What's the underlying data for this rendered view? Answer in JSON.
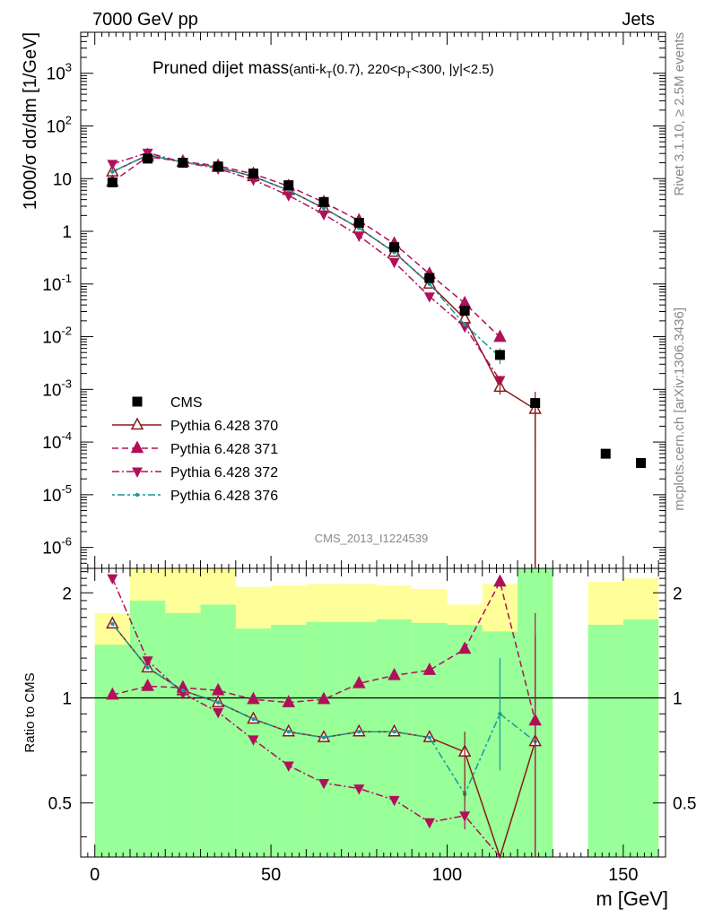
{
  "header": {
    "left": "7000 GeV pp",
    "right": "Jets"
  },
  "side_labels": {
    "rivet": "Rivet 3.1.10, ≥ 2.5M events",
    "mcplots": "mcplots.cern.ch [arXiv:1306.3436]"
  },
  "analysis_id": "CMS_2013_I1224539",
  "main_title": {
    "main": "Pruned dijet mass",
    "sub": "(anti-k",
    "sub_T": "T",
    "sub2": "(0.7), 220<p",
    "sub_T2": "T",
    "sub3": "<300, |y|<2.5)"
  },
  "axis_text": {
    "y_top": "1000/σ dσ/dm [1/GeV]",
    "y_ratio": "Ratio to CMS",
    "x": "m [GeV]"
  },
  "colors": {
    "data": "#000000",
    "p370": "#8b1a1a",
    "p371": "#b0105a",
    "p372": "#b0105a",
    "p376": "#1a9a9a",
    "band_inner": "#99ff99",
    "band_outer": "#ffff99"
  },
  "chart_data": {
    "type": "line",
    "x_label": "m [GeV]",
    "y_label": "1000/σ dσ/dm [1/GeV]",
    "ratio_label": "Ratio to CMS",
    "xlim": [
      -4,
      162
    ],
    "ylim_log": [
      4e-07,
      6000.0
    ],
    "ratio_ylim": [
      0.35,
      2.35
    ],
    "x_ticks": [
      0,
      50,
      100,
      150
    ],
    "y_ticks": [
      "10^{-6}",
      "10^{-5}",
      "10^{-4}",
      "10^{-3}",
      "10^{-2}",
      "10^{-1}",
      "1",
      "10",
      "10^{2}",
      "10^{3}"
    ],
    "ratio_ticks": [
      0.5,
      1,
      2
    ],
    "legend_position": "left",
    "bin_edges": [
      0,
      10,
      20,
      30,
      40,
      50,
      60,
      70,
      80,
      90,
      100,
      110,
      120,
      130,
      140,
      150,
      160
    ],
    "x_centers": [
      5,
      15,
      25,
      35,
      45,
      55,
      65,
      75,
      85,
      95,
      105,
      115,
      125,
      135,
      145,
      155
    ],
    "cms": [
      8.5,
      24,
      20,
      17,
      12.5,
      7.5,
      3.6,
      1.45,
      0.5,
      0.13,
      0.031,
      0.0045,
      0.00055,
      null,
      6e-05,
      4e-05
    ],
    "series": [
      {
        "name": "Pythia 6.428 370",
        "key": "p370",
        "marker": "triangle-up-open",
        "dash": "",
        "values": [
          13.5,
          28,
          20.5,
          16.5,
          11,
          6,
          2.75,
          1.15,
          0.4,
          0.1,
          0.022,
          0.0011,
          0.00042
        ]
      },
      {
        "name": "Pythia 6.428 371",
        "key": "p371",
        "marker": "triangle-up",
        "dash": "7,4",
        "values": [
          8.7,
          26,
          21,
          17.5,
          12.3,
          7.2,
          3.55,
          1.6,
          0.58,
          0.155,
          0.043,
          0.0098,
          null
        ]
      },
      {
        "name": "Pythia 6.428 372",
        "key": "p372",
        "marker": "triangle-down",
        "dash": "8,3,2,3",
        "values": [
          19,
          31,
          20.5,
          15.5,
          9.5,
          4.8,
          2.1,
          0.82,
          0.26,
          0.058,
          0.0155,
          0.0015,
          null
        ]
      },
      {
        "name": "Pythia 6.428 376",
        "key": "p376",
        "marker": "dot",
        "dash": "3,3,8,3",
        "values": [
          13.5,
          28,
          20.5,
          16.5,
          11,
          6,
          2.75,
          1.15,
          0.4,
          0.1,
          0.017,
          0.0041,
          null
        ]
      }
    ],
    "ratios": {
      "p370": [
        1.63,
        1.22,
        1.05,
        0.97,
        0.87,
        0.8,
        0.77,
        0.8,
        0.8,
        0.77,
        0.7,
        0.24,
        0.75
      ],
      "p371": [
        1.02,
        1.08,
        1.07,
        1.05,
        0.99,
        0.97,
        0.99,
        1.1,
        1.16,
        1.2,
        1.38,
        2.15,
        0.86
      ],
      "p372": [
        2.2,
        1.28,
        1.03,
        0.91,
        0.76,
        0.64,
        0.57,
        0.55,
        0.51,
        0.44,
        0.46,
        0.22,
        null
      ],
      "p376": [
        1.63,
        1.22,
        1.05,
        0.97,
        0.87,
        0.8,
        0.77,
        0.8,
        0.8,
        0.77,
        0.53,
        0.9,
        0.75
      ]
    },
    "band_inner": [
      [
        0.35,
        1.42
      ],
      [
        0.35,
        1.9
      ],
      [
        0.35,
        1.75
      ],
      [
        0.35,
        1.85
      ],
      [
        0.35,
        1.58
      ],
      [
        0.35,
        1.62
      ],
      [
        0.35,
        1.65
      ],
      [
        0.35,
        1.65
      ],
      [
        0.35,
        1.68
      ],
      [
        0.35,
        1.64
      ],
      [
        0.35,
        1.62
      ],
      [
        0.35,
        1.55
      ],
      [
        0.35,
        2.35
      ],
      null,
      [
        0.35,
        1.62
      ],
      [
        0.35,
        1.68
      ]
    ],
    "band_outer": [
      [
        0.35,
        1.75
      ],
      [
        0.35,
        2.35
      ],
      [
        0.35,
        2.35
      ],
      [
        0.35,
        2.35
      ],
      [
        0.4,
        2.08
      ],
      [
        0.46,
        2.1
      ],
      [
        0.45,
        2.12
      ],
      [
        0.48,
        2.12
      ],
      [
        0.45,
        2.1
      ],
      [
        0.4,
        2.05
      ],
      [
        0.4,
        1.85
      ],
      [
        0.35,
        2.12
      ],
      [
        0.35,
        2.35
      ],
      null,
      [
        0.35,
        2.15
      ],
      [
        0.35,
        2.2
      ]
    ]
  }
}
